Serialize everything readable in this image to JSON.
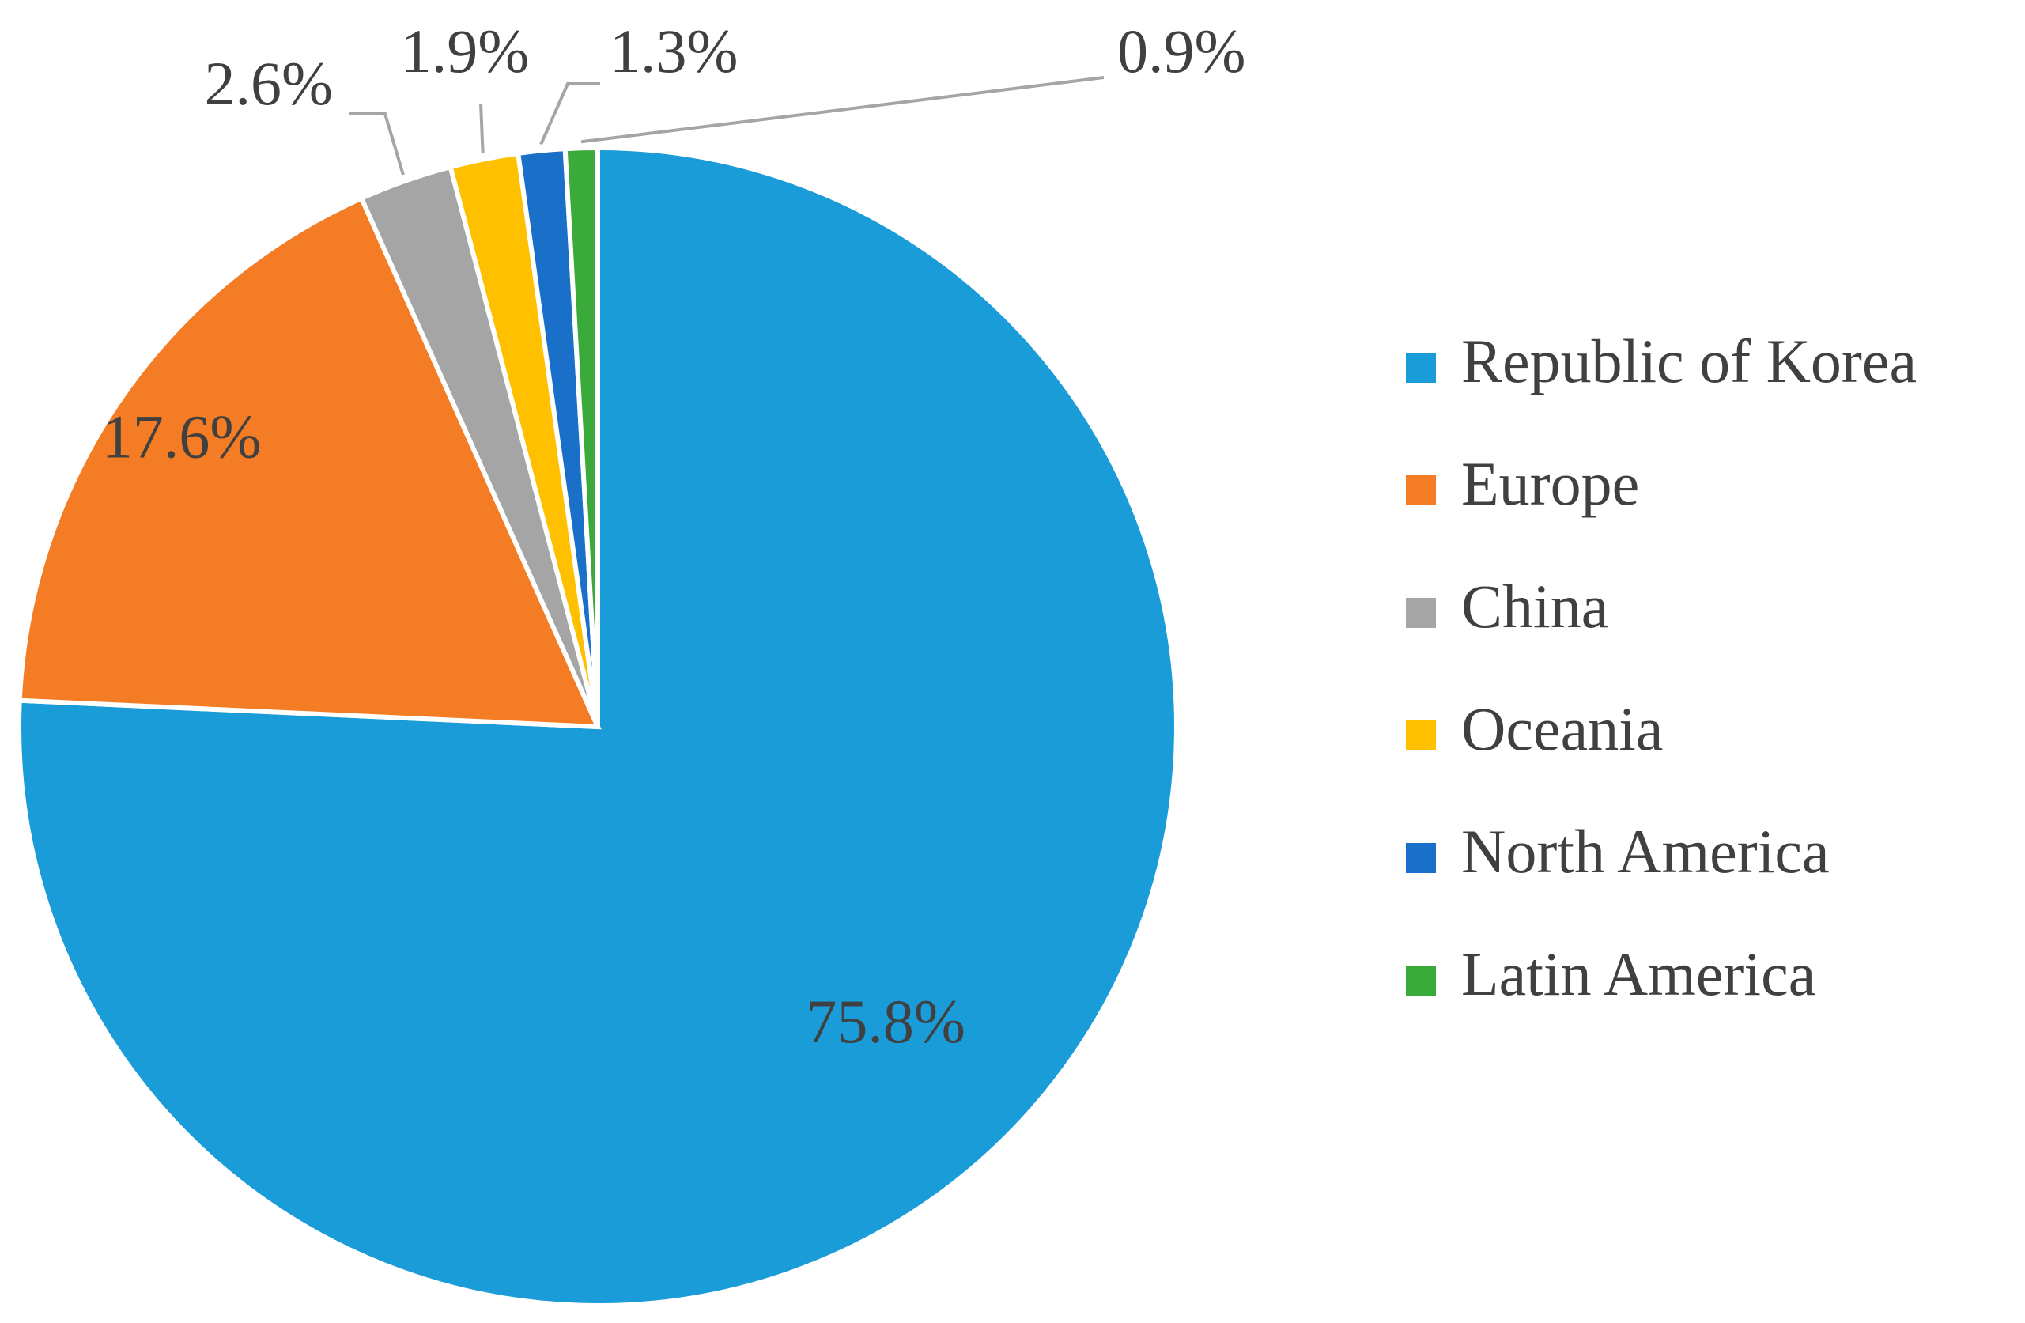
{
  "chart_data": {
    "type": "pie",
    "categories": [
      "Republic of Korea",
      "Europe",
      "China",
      "Oceania",
      "North America",
      "Latin America"
    ],
    "values": [
      75.8,
      17.6,
      2.6,
      1.9,
      1.3,
      0.9
    ],
    "value_labels": [
      "75.8%",
      "17.6%",
      "2.6%",
      "1.9%",
      "1.3%",
      "0.9%"
    ],
    "colors": [
      "#1a9cd8",
      "#f47c24",
      "#a5a5a5",
      "#ffc000",
      "#1a6fc9",
      "#3aab3a"
    ],
    "legend": "right"
  }
}
